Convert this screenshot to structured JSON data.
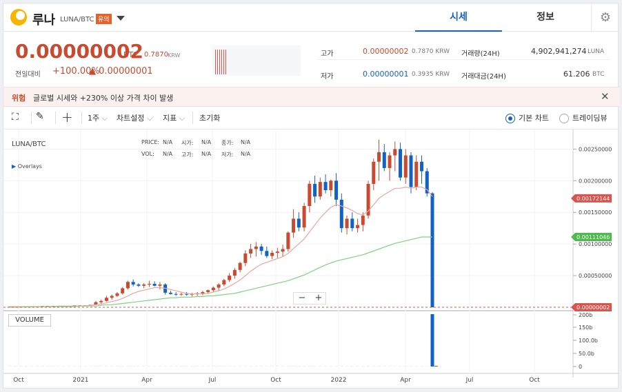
{
  "header": {
    "coin_name": "루나",
    "pair": "LUNA/BTC",
    "warning_badge": "유의",
    "tabs": [
      {
        "label": "시세"
      },
      {
        "label": "정보"
      }
    ]
  },
  "quote": {
    "price": "0.00000002",
    "price_unit": "BTC",
    "price_krw": "0.7870",
    "price_krw_unit": "KRW",
    "change_label": "전일대비",
    "change_pct": "+100.00%",
    "change_amt": "▲ 0.00000001",
    "high_label": "고가",
    "high_value": "0.00000002",
    "high_krw": "0.7870 KRW",
    "low_label": "저가",
    "low_value": "0.00000001",
    "low_krw": "0.3935 KRW",
    "volume_label": "거래량(24H)",
    "volume_value": "4,902,941,274",
    "volume_unit": "LUNA",
    "amount_label": "거래대금(24H)",
    "amount_value": "61.206",
    "amount_unit": "BTC"
  },
  "alert": {
    "tag": "위험",
    "message": "글로벌 시세와 +230% 이상 가격 차이 발생"
  },
  "toolbar": {
    "period": "1주",
    "chart_settings": "차트설정",
    "indicator": "지표",
    "reset": "초기화",
    "basic_chart": "기본 차트",
    "tradingview": "트레이딩뷰"
  },
  "colors": {
    "up": "#c84a31",
    "down": "#1261c4",
    "ma_short": "#e8a7a0",
    "ma_long": "#7fd27f",
    "accent": "#1261c4"
  },
  "chart_data": {
    "type": "candlestick",
    "title": "LUNA/BTC",
    "overlays_label": "Overlays",
    "legend": {
      "price": "PRICE:",
      "price_v": "N/A",
      "open": "시가:",
      "open_v": "N/A",
      "close": "종가:",
      "close_v": "N/A",
      "vol": "VOL:",
      "vol_v": "N/A",
      "high": "고가:",
      "high_v": "N/A",
      "low": "저가:",
      "low_v": "N/A"
    },
    "x_ticks": [
      "Oct",
      "2021",
      "Apr",
      "Jul",
      "Oct",
      "2022",
      "Apr",
      "Jul",
      "Oct"
    ],
    "y_ticks": [
      "0.00250000",
      "0.00200000",
      "0.00150000",
      "0.00100000",
      "0.00050000"
    ],
    "ylim": [
      0,
      0.0027
    ],
    "price_tags": [
      {
        "value": 0.00172144,
        "label": "0.00172144",
        "color": "#d9534f"
      },
      {
        "value": 0.00111046,
        "label": "0.00111046",
        "color": "#4cbb4c"
      },
      {
        "value": 2e-08,
        "label": "0.00000002",
        "color": "#d9534f"
      }
    ],
    "volume_label": "VOLUME",
    "volume_ticks": [
      "200b",
      "150b",
      "100.0b",
      "50.0b",
      "0"
    ],
    "candles": [
      [
        0.0,
        1e-05,
        0.0,
        1e-05
      ],
      [
        1e-05,
        1e-05,
        0.0,
        1e-05
      ],
      [
        1e-05,
        1e-05,
        1e-05,
        1e-05
      ],
      [
        1e-05,
        1e-05,
        1e-05,
        1e-05
      ],
      [
        1e-05,
        1e-05,
        1e-05,
        1e-05
      ],
      [
        1e-05,
        1e-05,
        1e-05,
        1e-05
      ],
      [
        1e-05,
        2e-05,
        1e-05,
        2e-05
      ],
      [
        2e-05,
        2e-05,
        1e-05,
        2e-05
      ],
      [
        2e-05,
        2e-05,
        1e-05,
        2e-05
      ],
      [
        2e-05,
        2e-05,
        2e-05,
        2e-05
      ],
      [
        2e-05,
        2e-05,
        2e-05,
        2e-05
      ],
      [
        2e-05,
        2e-05,
        2e-05,
        2e-05
      ],
      [
        2e-05,
        3e-05,
        2e-05,
        3e-05
      ],
      [
        3e-05,
        3e-05,
        2e-05,
        3e-05
      ],
      [
        3e-05,
        3e-05,
        2e-05,
        3e-05
      ],
      [
        3e-05,
        4e-05,
        3e-05,
        4e-05
      ],
      [
        4e-05,
        0.0001,
        4e-05,
        8e-05
      ],
      [
        8e-05,
        0.00012,
        5e-05,
        0.0001
      ],
      [
        0.0001,
        0.00018,
        9e-05,
        0.00015
      ],
      [
        0.00015,
        0.0002,
        0.00012,
        0.00018
      ],
      [
        0.00018,
        0.00024,
        0.00016,
        0.00022
      ],
      [
        0.00022,
        0.00032,
        0.0002,
        0.0003
      ],
      [
        0.0003,
        0.00042,
        0.00028,
        0.0004
      ],
      [
        0.0004,
        0.00044,
        0.00033,
        0.00036
      ],
      [
        0.00036,
        0.00038,
        0.00032,
        0.00034
      ],
      [
        0.00034,
        0.00038,
        0.0003,
        0.00036
      ],
      [
        0.00036,
        0.00042,
        0.00032,
        0.00037
      ],
      [
        0.00037,
        0.00041,
        0.00033,
        0.00034
      ],
      [
        0.00034,
        0.0004,
        0.00028,
        0.00036
      ],
      [
        0.00036,
        0.00038,
        0.0002,
        0.00023
      ],
      [
        0.00023,
        0.00026,
        0.0002,
        0.00021
      ],
      [
        0.00021,
        0.00024,
        0.00018,
        0.0002
      ],
      [
        0.0002,
        0.00023,
        0.00018,
        0.00021
      ],
      [
        0.00021,
        0.00024,
        0.00018,
        0.0002
      ],
      [
        0.0002,
        0.00023,
        0.00017,
        0.00021
      ],
      [
        0.00021,
        0.00024,
        0.00018,
        0.00022
      ],
      [
        0.00022,
        0.00026,
        0.00019,
        0.00024
      ],
      [
        0.00024,
        0.00028,
        0.00021,
        0.00027
      ],
      [
        0.00027,
        0.00033,
        0.00024,
        0.00031
      ],
      [
        0.00031,
        0.00038,
        0.00026,
        0.00036
      ],
      [
        0.00036,
        0.00045,
        0.00033,
        0.00043
      ],
      [
        0.00043,
        0.00054,
        0.0004,
        0.0005
      ],
      [
        0.0005,
        0.00062,
        0.00045,
        0.00059
      ],
      [
        0.00059,
        0.00072,
        0.00055,
        0.0007
      ],
      [
        0.0007,
        0.0009,
        0.00065,
        0.00085
      ],
      [
        0.00085,
        0.001,
        0.00078,
        0.00092
      ],
      [
        0.00092,
        0.00103,
        0.0008,
        0.00096
      ],
      [
        0.00096,
        0.001,
        0.00083,
        0.00089
      ],
      [
        0.00089,
        0.00096,
        0.00078,
        0.00081
      ],
      [
        0.00081,
        0.0009,
        0.00076,
        0.00086
      ],
      [
        0.00086,
        0.00094,
        0.00078,
        0.00088
      ],
      [
        0.00088,
        0.00099,
        0.0008,
        0.00092
      ],
      [
        0.00092,
        0.0012,
        0.00088,
        0.00118
      ],
      [
        0.00118,
        0.00155,
        0.0011,
        0.0014
      ],
      [
        0.0014,
        0.0015,
        0.0012,
        0.00126
      ],
      [
        0.00126,
        0.00165,
        0.0012,
        0.0016
      ],
      [
        0.0016,
        0.002,
        0.0015,
        0.00195
      ],
      [
        0.00195,
        0.00208,
        0.00165,
        0.00175
      ],
      [
        0.00175,
        0.00205,
        0.0017,
        0.00198
      ],
      [
        0.00198,
        0.0021,
        0.0018,
        0.00185
      ],
      [
        0.00185,
        0.00202,
        0.00175,
        0.002
      ],
      [
        0.002,
        0.00212,
        0.0016,
        0.0017
      ],
      [
        0.0017,
        0.0018,
        0.00118,
        0.00125
      ],
      [
        0.00125,
        0.00145,
        0.00115,
        0.0014
      ],
      [
        0.0014,
        0.0015,
        0.0012,
        0.00125
      ],
      [
        0.00125,
        0.0014,
        0.00118,
        0.0013
      ],
      [
        0.0013,
        0.0015,
        0.0012,
        0.00145
      ],
      [
        0.00145,
        0.002,
        0.0014,
        0.00195
      ],
      [
        0.00195,
        0.00235,
        0.00185,
        0.0023
      ],
      [
        0.0023,
        0.00265,
        0.002,
        0.00245
      ],
      [
        0.00245,
        0.00258,
        0.00215,
        0.0022
      ],
      [
        0.0022,
        0.00245,
        0.002,
        0.0024
      ],
      [
        0.0024,
        0.00262,
        0.00215,
        0.0025
      ],
      [
        0.0025,
        0.0026,
        0.002,
        0.00205
      ],
      [
        0.00205,
        0.0025,
        0.00195,
        0.0024
      ],
      [
        0.0024,
        0.00245,
        0.0018,
        0.0019
      ],
      [
        0.0019,
        0.0024,
        0.00185,
        0.0023
      ],
      [
        0.0023,
        0.0024,
        0.00195,
        0.00215
      ],
      [
        0.00215,
        0.0022,
        0.00175,
        0.0018
      ],
      [
        0.0018,
        0.00182,
        0.0,
        0.0
      ]
    ],
    "ma_short": [
      1e-05,
      1e-05,
      1e-05,
      1e-05,
      1e-05,
      1e-05,
      1e-05,
      1e-05,
      1e-05,
      2e-05,
      2e-05,
      2e-05,
      2e-05,
      2e-05,
      2e-05,
      3e-05,
      4e-05,
      5e-05,
      7e-05,
      9e-05,
      0.00011,
      0.00014,
      0.00018,
      0.00022,
      0.00025,
      0.00027,
      0.00029,
      0.00031,
      0.00031,
      0.0003,
      0.00028,
      0.00026,
      0.00024,
      0.00022,
      0.00021,
      0.00021,
      0.00021,
      0.00022,
      0.00024,
      0.00026,
      0.00029,
      0.00033,
      0.00038,
      0.00043,
      0.0005,
      0.00057,
      0.00063,
      0.00068,
      0.00071,
      0.00074,
      0.00077,
      0.0008,
      0.00085,
      0.00093,
      0.001,
      0.00108,
      0.00119,
      0.0013,
      0.00141,
      0.0015,
      0.00158,
      0.00162,
      0.0016,
      0.00157,
      0.00153,
      0.00148,
      0.00146,
      0.00152,
      0.00162,
      0.00172,
      0.00178,
      0.00183,
      0.00188,
      0.00188,
      0.0019,
      0.00188,
      0.0019,
      0.0019,
      0.00186,
      0.00175
    ],
    "ma_long": [
      0.0,
      0.0,
      0.0,
      1e-05,
      1e-05,
      1e-05,
      1e-05,
      1e-05,
      1e-05,
      1e-05,
      1e-05,
      1e-05,
      1e-05,
      2e-05,
      2e-05,
      2e-05,
      2e-05,
      3e-05,
      4e-05,
      4e-05,
      5e-05,
      6e-05,
      7e-05,
      8e-05,
      9e-05,
      0.0001,
      0.00011,
      0.00012,
      0.00013,
      0.00014,
      0.00015,
      0.00015,
      0.00016,
      0.00016,
      0.00016,
      0.00017,
      0.00017,
      0.00018,
      0.00018,
      0.00019,
      0.0002,
      0.00021,
      0.00022,
      0.00024,
      0.00026,
      0.00028,
      0.0003,
      0.00032,
      0.00034,
      0.00036,
      0.00038,
      0.0004,
      0.00042,
      0.00045,
      0.00048,
      0.00051,
      0.00055,
      0.00059,
      0.00063,
      0.00067,
      0.0007,
      0.00073,
      0.00075,
      0.00077,
      0.00079,
      0.00081,
      0.00083,
      0.00086,
      0.00089,
      0.00092,
      0.00095,
      0.00098,
      0.00101,
      0.00103,
      0.00105,
      0.00107,
      0.00109,
      0.00111,
      0.00111,
      0.00111
    ]
  }
}
